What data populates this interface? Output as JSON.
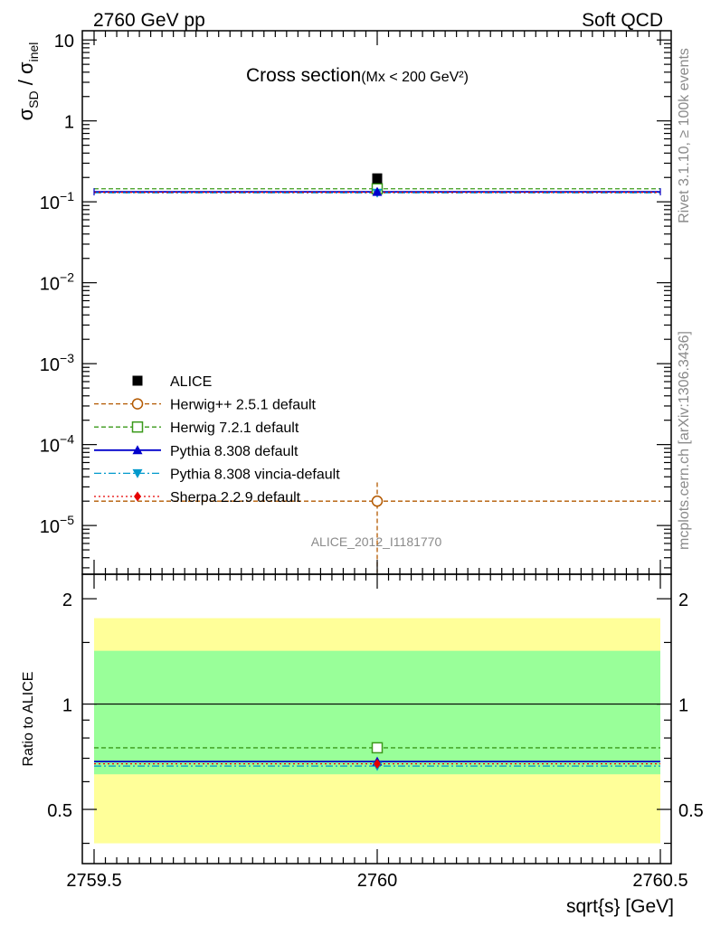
{
  "header": {
    "energy_label": "2760 GeV pp",
    "process_label": "Soft QCD"
  },
  "side_labels": {
    "rivet": "Rivet 3.1.10, ≥ 100k events",
    "mcplots": "mcplots.cern.ch [arXiv:1306.3436]"
  },
  "chart_data": [
    {
      "type": "scatter",
      "panel": "main",
      "title": "Cross section",
      "title_note": "(Mx < 200 GeV²)",
      "yscale": "log",
      "ylabel": "σ_SD / σ_inel",
      "ylabel_parts": {
        "sigma": "σ",
        "sub_sd": "SD",
        "slash": " / ",
        "sub_inel": "inel"
      },
      "xlim": [
        2759.5,
        2760.5
      ],
      "ylim": [
        2.5e-06,
        13
      ],
      "y_ticks": [
        {
          "value": 1e-05,
          "base": "10",
          "exp": "−5"
        },
        {
          "value": 0.0001,
          "base": "10",
          "exp": "−4"
        },
        {
          "value": 0.001,
          "base": "10",
          "exp": "−3"
        },
        {
          "value": 0.01,
          "base": "10",
          "exp": "−2"
        },
        {
          "value": 0.1,
          "base": "10",
          "exp": "−1"
        },
        {
          "value": 1,
          "base": "1",
          "exp": ""
        },
        {
          "value": 10,
          "base": "10",
          "exp": ""
        }
      ],
      "analysis_id": "ALICE_2012_I1181770",
      "series": [
        {
          "name": "ALICE",
          "x": 2760,
          "y": 0.195,
          "color": "#000000",
          "marker": "square-filled",
          "line": "none"
        },
        {
          "name": "Herwig++ 2.5.1 default",
          "x": 2760,
          "y": 2e-05,
          "yerr_high": 3.4e-05,
          "yerr_low": 2.6e-06,
          "color": "#b35900",
          "marker": "circle-open",
          "line": "dashed"
        },
        {
          "name": "Herwig 7.2.1 default",
          "x": 2760,
          "y": 0.145,
          "color": "#3a9a1a",
          "marker": "square-open",
          "line": "dashed"
        },
        {
          "name": "Pythia 8.308 default",
          "x": 2760,
          "y": 0.133,
          "color": "#0000cc",
          "marker": "triangle-up",
          "line": "solid"
        },
        {
          "name": "Pythia 8.308 vincia-default",
          "x": 2760,
          "y": 0.129,
          "color": "#0099cc",
          "marker": "triangle-down",
          "line": "dashdot"
        },
        {
          "name": "Sherpa 2.2.9 default",
          "x": 2760,
          "y": 0.131,
          "color": "#e60000",
          "marker": "diamond",
          "line": "dotted"
        }
      ]
    },
    {
      "type": "scatter",
      "panel": "ratio",
      "ylabel": "Ratio to ALICE",
      "xlabel": "sqrt{s} [GeV]",
      "yscale": "log",
      "xlim": [
        2759.5,
        2760.5
      ],
      "ylim": [
        0.35,
        2.35
      ],
      "x_ticks": [
        {
          "value": 2759.5,
          "label": "2759.5"
        },
        {
          "value": 2760,
          "label": "2760"
        },
        {
          "value": 2760.5,
          "label": "2760.5"
        }
      ],
      "y_ticks": [
        {
          "value": 0.5,
          "label": "0.5"
        },
        {
          "value": 1,
          "label": "1"
        },
        {
          "value": 2,
          "label": "2"
        }
      ],
      "band_1sigma": [
        0.63,
        1.42
      ],
      "band_2sigma": [
        0.4,
        1.76
      ],
      "series": [
        {
          "name": "Herwig 7.2.1 default",
          "y": 0.75,
          "color": "#3a9a1a",
          "marker": "square-open",
          "line": "dashed"
        },
        {
          "name": "Pythia 8.308 default",
          "y": 0.685,
          "color": "#0000cc",
          "marker": "triangle-up",
          "line": "solid"
        },
        {
          "name": "Pythia 8.308 vincia-default",
          "y": 0.665,
          "color": "#0099cc",
          "marker": "triangle-down",
          "line": "dashdot"
        },
        {
          "name": "Sherpa 2.2.9 default",
          "y": 0.675,
          "color": "#e60000",
          "marker": "diamond",
          "line": "dotted"
        }
      ]
    }
  ]
}
